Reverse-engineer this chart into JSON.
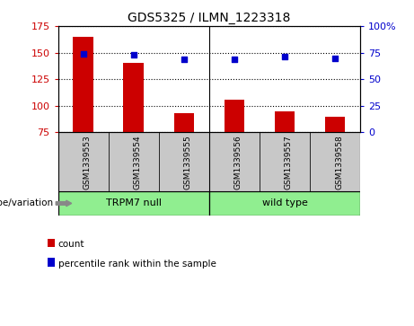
{
  "title": "GDS5325 / ILMN_1223318",
  "samples": [
    "GSM1339553",
    "GSM1339554",
    "GSM1339555",
    "GSM1339556",
    "GSM1339557",
    "GSM1339558"
  ],
  "counts": [
    165,
    140,
    93,
    106,
    95,
    90
  ],
  "percentile_ranks": [
    74,
    73,
    69,
    69,
    71,
    70
  ],
  "groups": [
    {
      "label": "TRPM7 null",
      "indices": [
        0,
        1,
        2
      ],
      "color": "#90EE90"
    },
    {
      "label": "wild type",
      "indices": [
        3,
        4,
        5
      ],
      "color": "#90EE90"
    }
  ],
  "group_label_prefix": "genotype/variation",
  "ylim_left": [
    75,
    175
  ],
  "yticks_left": [
    75,
    100,
    125,
    150,
    175
  ],
  "ylim_right": [
    0,
    100
  ],
  "yticks_right": [
    0,
    25,
    50,
    75,
    100
  ],
  "bar_color": "#CC0000",
  "dot_color": "#0000CC",
  "bar_width": 0.4,
  "legend_items": [
    {
      "label": "count",
      "color": "#CC0000"
    },
    {
      "label": "percentile rank within the sample",
      "color": "#0000CC"
    }
  ],
  "left_axis_color": "#CC0000",
  "right_axis_color": "#0000CC",
  "grid_color": "black",
  "sample_box_color": "#C8C8C8",
  "plot_bg": "#FFFFFF",
  "separator_x": 2.5,
  "xlim": [
    -0.5,
    5.5
  ]
}
